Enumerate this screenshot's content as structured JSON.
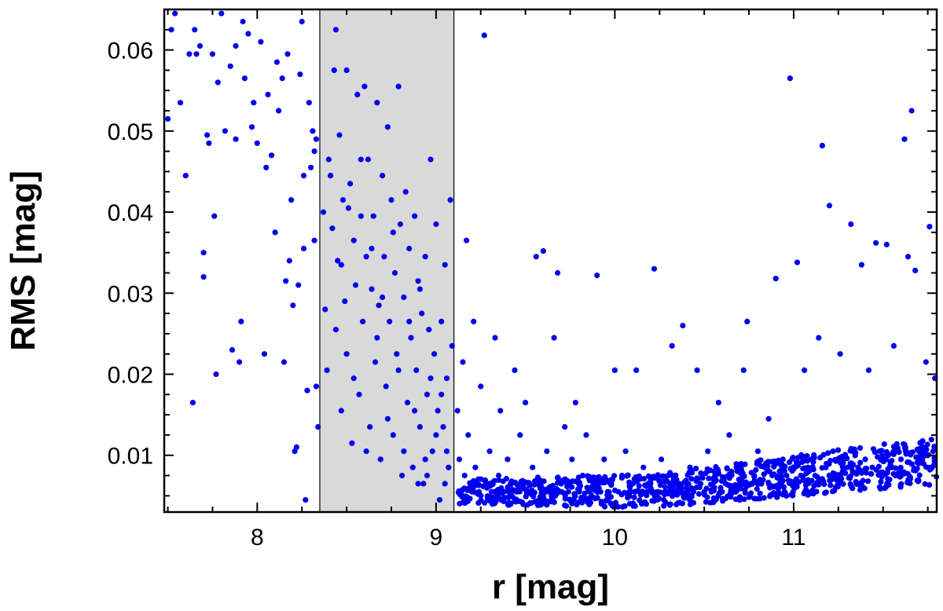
{
  "chart_data": {
    "type": "scatter",
    "xlabel": "r [mag]",
    "ylabel": "RMS [mag]",
    "xlim": [
      7.48,
      11.8
    ],
    "ylim": [
      0.003,
      0.065
    ],
    "xticks": [
      8,
      9,
      10,
      11
    ],
    "yticks": [
      0.01,
      0.02,
      0.03,
      0.04,
      0.05,
      0.06
    ],
    "xticks_minor_step": 0.25,
    "yticks_minor_step": 0.0025,
    "grid": false,
    "legend": "none",
    "marker_color": "#0000ee",
    "shaded_band": {
      "x_range": [
        8.35,
        9.1
      ],
      "color": "#d9d9d9"
    },
    "series": [
      {
        "points": [
          [
            7.5,
            0.0515
          ],
          [
            7.52,
            0.0625
          ],
          [
            7.54,
            0.0645
          ],
          [
            7.57,
            0.0535
          ],
          [
            7.6,
            0.0445
          ],
          [
            7.62,
            0.0595
          ],
          [
            7.64,
            0.0165
          ],
          [
            7.65,
            0.0625
          ],
          [
            7.68,
            0.0605
          ],
          [
            7.7,
            0.032
          ],
          [
            7.7,
            0.035
          ],
          [
            7.72,
            0.0495
          ],
          [
            7.73,
            0.0485
          ],
          [
            7.76,
            0.0395
          ],
          [
            7.77,
            0.02
          ],
          [
            7.78,
            0.056
          ],
          [
            7.8,
            0.0645
          ],
          [
            7.82,
            0.05
          ],
          [
            7.85,
            0.058
          ],
          [
            7.86,
            0.023
          ],
          [
            7.88,
            0.049
          ],
          [
            7.9,
            0.0215
          ],
          [
            7.91,
            0.0265
          ],
          [
            7.93,
            0.0565
          ],
          [
            7.95,
            0.062
          ],
          [
            7.97,
            0.0505
          ],
          [
            8.0,
            0.0485
          ],
          [
            8.02,
            0.061
          ],
          [
            8.04,
            0.0225
          ],
          [
            8.06,
            0.0545
          ],
          [
            8.08,
            0.047
          ],
          [
            8.1,
            0.0375
          ],
          [
            8.12,
            0.0525
          ],
          [
            8.14,
            0.0565
          ],
          [
            8.15,
            0.0215
          ],
          [
            8.17,
            0.0595
          ],
          [
            8.18,
            0.034
          ],
          [
            8.2,
            0.0285
          ],
          [
            8.21,
            0.0105
          ],
          [
            8.22,
            0.011
          ],
          [
            8.24,
            0.057
          ],
          [
            8.26,
            0.0445
          ],
          [
            8.27,
            0.0045
          ],
          [
            8.28,
            0.018
          ],
          [
            8.3,
            0.0455
          ],
          [
            8.31,
            0.05
          ],
          [
            8.32,
            0.0365
          ],
          [
            8.33,
            0.0185
          ],
          [
            8.34,
            0.0135
          ],
          [
            8.25,
            0.0635
          ],
          [
            8.19,
            0.0415
          ],
          [
            8.05,
            0.0455
          ],
          [
            7.98,
            0.0535
          ],
          [
            7.92,
            0.0635
          ],
          [
            7.88,
            0.0605
          ],
          [
            7.75,
            0.0595
          ],
          [
            7.66,
            0.0595
          ],
          [
            8.23,
            0.031
          ],
          [
            8.29,
            0.0535
          ],
          [
            8.32,
            0.0475
          ],
          [
            8.16,
            0.0315
          ],
          [
            8.11,
            0.0585
          ],
          [
            8.26,
            0.0355
          ],
          [
            8.33,
            0.049
          ],
          [
            8.37,
            0.04
          ],
          [
            8.38,
            0.028
          ],
          [
            8.39,
            0.0205
          ],
          [
            8.4,
            0.0465
          ],
          [
            8.42,
            0.038
          ],
          [
            8.43,
            0.0575
          ],
          [
            8.44,
            0.0625
          ],
          [
            8.45,
            0.034
          ],
          [
            8.46,
            0.0495
          ],
          [
            8.47,
            0.0155
          ],
          [
            8.48,
            0.0415
          ],
          [
            8.49,
            0.029
          ],
          [
            8.5,
            0.0575
          ],
          [
            8.5,
            0.0225
          ],
          [
            8.52,
            0.0435
          ],
          [
            8.53,
            0.0115
          ],
          [
            8.54,
            0.0365
          ],
          [
            8.55,
            0.031
          ],
          [
            8.56,
            0.0545
          ],
          [
            8.57,
            0.0175
          ],
          [
            8.58,
            0.0395
          ],
          [
            8.59,
            0.0265
          ],
          [
            8.6,
            0.0555
          ],
          [
            8.61,
            0.0345
          ],
          [
            8.62,
            0.0465
          ],
          [
            8.63,
            0.0135
          ],
          [
            8.64,
            0.0305
          ],
          [
            8.65,
            0.0395
          ],
          [
            8.66,
            0.0215
          ],
          [
            8.67,
            0.0535
          ],
          [
            8.68,
            0.0285
          ],
          [
            8.69,
            0.0095
          ],
          [
            8.7,
            0.0445
          ],
          [
            8.71,
            0.0345
          ],
          [
            8.72,
            0.0185
          ],
          [
            8.73,
            0.0505
          ],
          [
            8.74,
            0.0265
          ],
          [
            8.75,
            0.0415
          ],
          [
            8.76,
            0.0125
          ],
          [
            8.77,
            0.0325
          ],
          [
            8.78,
            0.0225
          ],
          [
            8.79,
            0.0555
          ],
          [
            8.8,
            0.0385
          ],
          [
            8.81,
            0.0075
          ],
          [
            8.82,
            0.0295
          ],
          [
            8.83,
            0.0425
          ],
          [
            8.84,
            0.0165
          ],
          [
            8.85,
            0.0355
          ],
          [
            8.86,
            0.0245
          ],
          [
            8.87,
            0.0085
          ],
          [
            8.88,
            0.0395
          ],
          [
            8.89,
            0.0205
          ],
          [
            8.9,
            0.0315
          ],
          [
            8.91,
            0.0135
          ],
          [
            8.92,
            0.0275
          ],
          [
            8.93,
            0.0065
          ],
          [
            8.94,
            0.0345
          ],
          [
            8.95,
            0.0175
          ],
          [
            8.96,
            0.0255
          ],
          [
            8.97,
            0.0465
          ],
          [
            8.98,
            0.0105
          ],
          [
            8.99,
            0.0225
          ],
          [
            9.0,
            0.0385
          ],
          [
            9.01,
            0.0155
          ],
          [
            9.02,
            0.0045
          ],
          [
            9.03,
            0.0265
          ],
          [
            9.04,
            0.0135
          ],
          [
            9.05,
            0.0335
          ],
          [
            9.06,
            0.0195
          ],
          [
            9.07,
            0.0085
          ],
          [
            9.08,
            0.0415
          ],
          [
            9.09,
            0.0235
          ],
          [
            8.41,
            0.0445
          ],
          [
            8.44,
            0.0255
          ],
          [
            8.47,
            0.0335
          ],
          [
            8.51,
            0.0405
          ],
          [
            8.54,
            0.0195
          ],
          [
            8.58,
            0.0465
          ],
          [
            8.61,
            0.0105
          ],
          [
            8.64,
            0.0355
          ],
          [
            8.67,
            0.0245
          ],
          [
            8.7,
            0.0295
          ],
          [
            8.73,
            0.0145
          ],
          [
            8.76,
            0.0375
          ],
          [
            8.79,
            0.0205
          ],
          [
            8.82,
            0.0105
          ],
          [
            8.85,
            0.0265
          ],
          [
            8.88,
            0.0155
          ],
          [
            8.91,
            0.0305
          ],
          [
            8.94,
            0.0095
          ],
          [
            8.97,
            0.0195
          ],
          [
            9.0,
            0.0125
          ],
          [
            9.03,
            0.0175
          ],
          [
            9.06,
            0.0105
          ],
          [
            8.9,
            0.0065
          ],
          [
            8.95,
            0.0075
          ],
          [
            9.05,
            0.0065
          ],
          [
            9.12,
            0.0155
          ],
          [
            9.13,
            0.0095
          ],
          [
            9.14,
            0.0055
          ],
          [
            9.15,
            0.0215
          ],
          [
            9.16,
            0.0075
          ],
          [
            9.17,
            0.0365
          ],
          [
            9.18,
            0.0125
          ],
          [
            9.2,
            0.0065
          ],
          [
            9.21,
            0.0265
          ],
          [
            9.22,
            0.0085
          ],
          [
            9.24,
            0.0055
          ],
          [
            9.25,
            0.0185
          ],
          [
            9.27,
            0.0618
          ],
          [
            9.28,
            0.0065
          ],
          [
            9.3,
            0.0105
          ],
          [
            9.31,
            0.0055
          ],
          [
            9.33,
            0.0245
          ],
          [
            9.35,
            0.0075
          ],
          [
            9.36,
            0.0155
          ],
          [
            9.38,
            0.0055
          ],
          [
            9.4,
            0.0095
          ],
          [
            9.42,
            0.0065
          ],
          [
            9.44,
            0.0205
          ],
          [
            9.45,
            0.0055
          ],
          [
            9.47,
            0.0125
          ],
          [
            9.49,
            0.0065
          ],
          [
            9.5,
            0.0165
          ],
          [
            9.52,
            0.0055
          ],
          [
            9.54,
            0.0085
          ],
          [
            9.56,
            0.0345
          ],
          [
            9.58,
            0.0065
          ],
          [
            9.6,
            0.0352
          ],
          [
            9.62,
            0.0105
          ],
          [
            9.64,
            0.0055
          ],
          [
            9.66,
            0.0245
          ],
          [
            9.68,
            0.0325
          ],
          [
            9.7,
            0.0065
          ],
          [
            9.72,
            0.0135
          ],
          [
            9.74,
            0.0055
          ],
          [
            9.76,
            0.0095
          ],
          [
            9.78,
            0.0165
          ],
          [
            9.8,
            0.0055
          ],
          [
            9.82,
            0.0075
          ],
          [
            9.84,
            0.0125
          ],
          [
            9.86,
            0.0055
          ],
          [
            9.88,
            0.0065
          ],
          [
            9.9,
            0.0322
          ],
          [
            9.92,
            0.0055
          ],
          [
            9.94,
            0.0095
          ],
          [
            9.96,
            0.0055
          ],
          [
            9.98,
            0.0065
          ],
          [
            10.0,
            0.0205
          ],
          [
            10.02,
            0.0055
          ],
          [
            10.04,
            0.0075
          ],
          [
            10.06,
            0.0105
          ],
          [
            10.08,
            0.0055
          ],
          [
            10.1,
            0.0065
          ],
          [
            10.12,
            0.0205
          ],
          [
            10.14,
            0.0055
          ],
          [
            10.16,
            0.0085
          ],
          [
            10.18,
            0.0055
          ],
          [
            10.2,
            0.0065
          ],
          [
            10.22,
            0.033
          ],
          [
            10.24,
            0.0055
          ],
          [
            10.26,
            0.0095
          ],
          [
            10.28,
            0.0055
          ],
          [
            10.3,
            0.0075
          ],
          [
            10.32,
            0.0235
          ],
          [
            10.34,
            0.0055
          ],
          [
            10.36,
            0.0065
          ],
          [
            10.38,
            0.026
          ],
          [
            10.4,
            0.0055
          ],
          [
            10.42,
            0.0085
          ],
          [
            10.44,
            0.0055
          ],
          [
            10.46,
            0.0205
          ],
          [
            10.48,
            0.0065
          ],
          [
            10.5,
            0.0055
          ],
          [
            10.52,
            0.0105
          ],
          [
            10.54,
            0.0055
          ],
          [
            10.56,
            0.0075
          ],
          [
            10.58,
            0.0165
          ],
          [
            10.6,
            0.0055
          ],
          [
            10.62,
            0.0065
          ],
          [
            10.64,
            0.0125
          ],
          [
            10.66,
            0.0055
          ],
          [
            10.68,
            0.0085
          ],
          [
            10.7,
            0.0065
          ],
          [
            10.72,
            0.0205
          ],
          [
            10.74,
            0.0265
          ],
          [
            10.76,
            0.0065
          ],
          [
            10.78,
            0.0075
          ],
          [
            10.8,
            0.0105
          ],
          [
            10.82,
            0.0065
          ],
          [
            10.84,
            0.0085
          ],
          [
            10.86,
            0.0145
          ],
          [
            10.88,
            0.0075
          ],
          [
            10.9,
            0.0318
          ],
          [
            10.92,
            0.0065
          ],
          [
            10.94,
            0.0095
          ],
          [
            10.96,
            0.0075
          ],
          [
            10.98,
            0.0565
          ],
          [
            11.0,
            0.0085
          ],
          [
            11.02,
            0.0338
          ],
          [
            11.04,
            0.0075
          ],
          [
            11.06,
            0.0205
          ],
          [
            11.08,
            0.0085
          ],
          [
            11.1,
            0.0095
          ],
          [
            11.12,
            0.0075
          ],
          [
            11.14,
            0.0245
          ],
          [
            11.16,
            0.0482
          ],
          [
            11.18,
            0.0085
          ],
          [
            11.2,
            0.0408
          ],
          [
            11.22,
            0.0105
          ],
          [
            11.24,
            0.0075
          ],
          [
            11.26,
            0.0225
          ],
          [
            11.28,
            0.0095
          ],
          [
            11.3,
            0.0085
          ],
          [
            11.32,
            0.0385
          ],
          [
            11.34,
            0.0105
          ],
          [
            11.36,
            0.0085
          ],
          [
            11.38,
            0.0335
          ],
          [
            11.4,
            0.0095
          ],
          [
            11.42,
            0.0205
          ],
          [
            11.44,
            0.0085
          ],
          [
            11.46,
            0.0362
          ],
          [
            11.48,
            0.0105
          ],
          [
            11.5,
            0.0095
          ],
          [
            11.52,
            0.036
          ],
          [
            11.54,
            0.0085
          ],
          [
            11.56,
            0.0235
          ],
          [
            11.58,
            0.0105
          ],
          [
            11.6,
            0.0095
          ],
          [
            11.62,
            0.049
          ],
          [
            11.64,
            0.0345
          ],
          [
            11.66,
            0.0525
          ],
          [
            11.68,
            0.0328
          ],
          [
            11.7,
            0.0105
          ],
          [
            11.72,
            0.0095
          ],
          [
            11.74,
            0.0215
          ],
          [
            11.76,
            0.0382
          ],
          [
            11.78,
            0.0105
          ],
          [
            11.79,
            0.0195
          ]
        ]
      }
    ]
  }
}
